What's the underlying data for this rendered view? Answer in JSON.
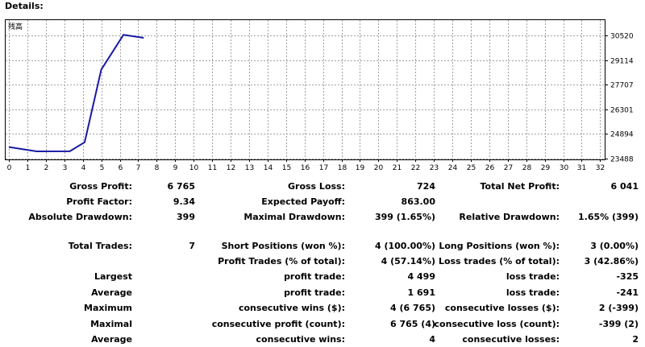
{
  "heading": "Details:",
  "chart_data": {
    "type": "line",
    "legend_label": "残高",
    "legend_position": "top-left",
    "grid": true,
    "x_ticks": [
      0,
      1,
      2,
      3,
      4,
      5,
      6,
      7,
      8,
      9,
      10,
      11,
      12,
      13,
      14,
      15,
      16,
      17,
      18,
      19,
      20,
      21,
      22,
      23,
      24,
      25,
      26,
      27,
      28,
      29,
      30,
      31,
      32
    ],
    "y_ticks": [
      "30520",
      "29114",
      "27707",
      "26301",
      "24894",
      "23488"
    ],
    "xlim": [
      0,
      32.2
    ],
    "ylim": [
      23488,
      30520
    ],
    "series": [
      {
        "color": "#1a1aa6",
        "x": [
          0,
          1.5,
          3.3,
          4.1,
          5,
          6.2,
          7.3
        ],
        "y": [
          24150,
          23900,
          23905,
          24420,
          28570,
          30550,
          30380
        ]
      }
    ]
  },
  "stats": {
    "gross_profit_label": "Gross Profit:",
    "gross_profit": "6 765",
    "gross_loss_label": "Gross Loss:",
    "gross_loss": "724",
    "total_net_profit_label": "Total Net Profit:",
    "total_net_profit": "6 041",
    "profit_factor_label": "Profit Factor:",
    "profit_factor": "9.34",
    "expected_payoff_label": "Expected Payoff:",
    "expected_payoff": "863.00",
    "absolute_drawdown_label": "Absolute Drawdown:",
    "absolute_drawdown": "399",
    "maximal_drawdown_label": "Maximal Drawdown:",
    "maximal_drawdown": "399 (1.65%)",
    "relative_drawdown_label": "Relative Drawdown:",
    "relative_drawdown": "1.65% (399)",
    "total_trades_label": "Total Trades:",
    "total_trades": "7",
    "short_positions_label": "Short Positions (won %):",
    "short_positions": "4 (100.00%)",
    "long_positions_label": "Long Positions (won %):",
    "long_positions": "3 (0.00%)",
    "profit_trades_label": "Profit Trades (% of total):",
    "profit_trades": "4 (57.14%)",
    "loss_trades_label": "Loss trades (% of total):",
    "loss_trades": "3 (42.86%)",
    "largest_label": "Largest",
    "largest_profit_label": "profit trade:",
    "largest_profit": "4 499",
    "largest_loss_label": "loss trade:",
    "largest_loss": "-325",
    "average_label": "Average",
    "average_profit_label": "profit trade:",
    "average_profit": "1 691",
    "average_loss_label": "loss trade:",
    "average_loss": "-241",
    "maximum_label": "Maximum",
    "max_consec_wins_label": "consecutive wins ($):",
    "max_consec_wins": "4 (6 765)",
    "max_consec_losses_label": "consecutive losses ($):",
    "max_consec_losses": "2 (-399)",
    "maximal_label": "Maximal",
    "maximal_consec_profit_label": "consecutive profit (count):",
    "maximal_consec_profit": "6 765 (4)",
    "maximal_consec_loss_label": "consecutive loss (count):",
    "maximal_consec_loss": "-399 (2)",
    "average2_label": "Average",
    "avg_consec_wins_label": "consecutive wins:",
    "avg_consec_wins": "4",
    "avg_consec_losses_label": "consecutive losses:",
    "avg_consec_losses": "2"
  }
}
